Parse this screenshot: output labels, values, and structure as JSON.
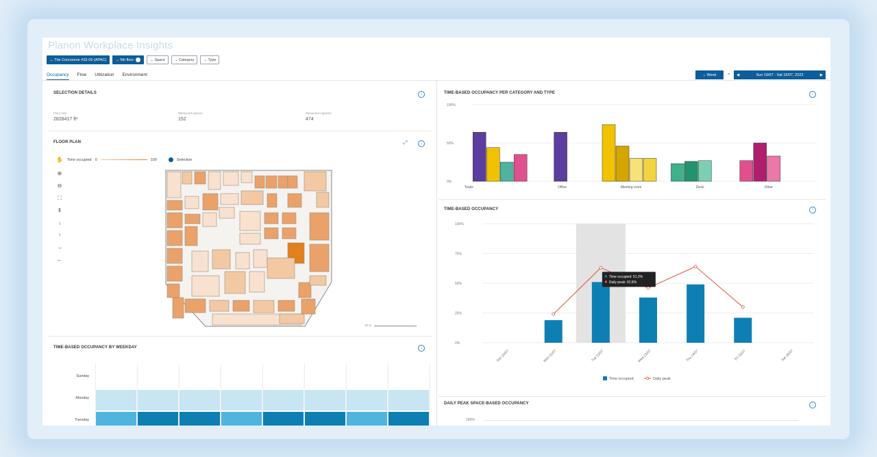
{
  "app": {
    "title": "Planon Workplace Insights"
  },
  "filters": [
    {
      "label": "The Concourse #32-05 (APAC)",
      "active": true
    },
    {
      "label": "5th floor",
      "active": true
    },
    {
      "label": "Space",
      "active": false
    },
    {
      "label": "Category",
      "active": false
    },
    {
      "label": "Type",
      "active": false
    }
  ],
  "tabs": [
    "Occupancy",
    "Flow",
    "Utilization",
    "Environment"
  ],
  "active_tab": "Occupancy",
  "period": {
    "granularity": "Week",
    "separator": "=",
    "range": "Sun 10/07 - Sat 16/07, 2022"
  },
  "selection_details": {
    "title": "SELECTION DETAILS",
    "floor_size_label": "Floor size",
    "floor_size_value": "2828417 ft²",
    "measured_spaces_label": "Measured spaces",
    "measured_spaces_value": "152",
    "measured_capacity_label": "Measured capacity",
    "measured_capacity_value": "474"
  },
  "floor_plan": {
    "title": "FLOOR PLAN",
    "legend_time_label": "Time occupied",
    "legend_min": "0",
    "legend_max": "100",
    "legend_selection": "Selection",
    "scale_label": "15 m",
    "tools": [
      "hand-icon",
      "zoom-in-icon",
      "zoom-out-icon",
      "fit-icon",
      "pause-icon",
      "arrow-down-icon",
      "arrow-up-icon",
      "arrow-right-icon",
      "arrow-left-icon"
    ]
  },
  "weekday": {
    "title": "TIME-BASED OCCUPANCY BY WEEKDAY",
    "rows": [
      "Sunday",
      "Monday",
      "Tuesday"
    ],
    "row_levels": [
      0,
      1,
      2
    ]
  },
  "category_chart": {
    "title": "TIME-BASED OCCUPANCY PER CATEGORY AND TYPE",
    "type": "bar",
    "yticks": [
      "100%",
      "50%",
      "0%"
    ],
    "groups": [
      {
        "name": "Totals",
        "values": [
          64,
          44,
          25,
          35
        ],
        "colors": [
          "#5b3e9e",
          "#f2c200",
          "#4fb3a0",
          "#e0508c"
        ]
      },
      {
        "name": "Office",
        "values": [
          64
        ],
        "colors": [
          "#5b3e9e"
        ]
      },
      {
        "name": "Meeting room",
        "values": [
          74,
          46,
          30,
          30
        ],
        "colors": [
          "#f2c200",
          "#d6a600",
          "#f7e27a",
          "#f2d440"
        ]
      },
      {
        "name": "Desk",
        "values": [
          23,
          26,
          27
        ],
        "colors": [
          "#3fb28a",
          "#22936e",
          "#7cd0b2"
        ]
      },
      {
        "name": "Other",
        "values": [
          27,
          50,
          33
        ],
        "colors": [
          "#e0508c",
          "#b01e6e",
          "#ea79a9"
        ]
      }
    ]
  },
  "chart_data": {
    "type": "bar",
    "title": "TIME-BASED OCCUPANCY",
    "categories": [
      "Sun 10/07",
      "Mon 11/07",
      "Tue 12/07",
      "Wed 13/07",
      "Thu 14/07",
      "Fri 15/07",
      "Sat 16/07"
    ],
    "yticks": [
      "100%",
      "75%",
      "50%",
      "25%",
      "0%"
    ],
    "ylim": [
      0,
      100
    ],
    "series": [
      {
        "name": "Time occupied",
        "type": "bar",
        "values": [
          0,
          19,
          51,
          38,
          49,
          21,
          0
        ]
      },
      {
        "name": "Daily peak",
        "type": "line",
        "values": [
          null,
          24,
          63,
          46,
          64,
          30,
          null
        ]
      }
    ],
    "highlight_category": "Tue 12/07",
    "tooltip": [
      "Time occupied: 51.2%",
      "Daily peak: 62.8%"
    ],
    "legend": [
      "Time occupied",
      "Daily peak"
    ],
    "colors": {
      "bar": "#0e7fb3",
      "line": "#e0503c",
      "highlight": "#e3e3e3"
    }
  },
  "daily_peak": {
    "title": "DAILY PEAK SPACE-BASED OCCUPANCY",
    "ytick": "100%"
  },
  "info_glyph": "i"
}
